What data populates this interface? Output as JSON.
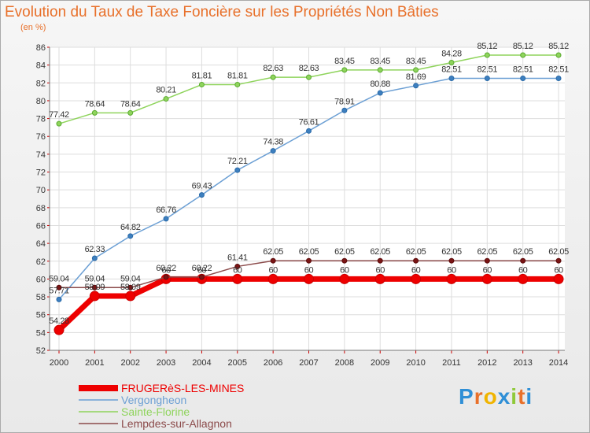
{
  "chart_data": {
    "type": "line",
    "title": "Evolution du Taux de Taxe Foncière sur les Propriétés Non Bâties",
    "subtitle": "(en %)",
    "xlabel": "",
    "ylabel": "(en %)",
    "ylim": [
      52,
      86
    ],
    "yticks": [
      52,
      54,
      56,
      58,
      60,
      62,
      64,
      66,
      68,
      70,
      72,
      74,
      76,
      78,
      80,
      82,
      84,
      86
    ],
    "categories": [
      "2000",
      "2001",
      "2002",
      "2003",
      "2004",
      "2005",
      "2006",
      "2007",
      "2008",
      "2009",
      "2010",
      "2011",
      "2012",
      "2013",
      "2014"
    ],
    "legend_position": "bottom-left",
    "series": [
      {
        "name": "FRUGERèS-LES-MINES",
        "color": "#ee0000",
        "values": [
          54.28,
          58.09,
          58.09,
          60,
          60,
          60,
          60,
          60,
          60,
          60,
          60,
          60,
          60,
          60,
          60
        ],
        "labels": [
          "54.28",
          "58.09",
          "58.09",
          "60",
          "60",
          "60",
          "60",
          "60",
          "60",
          "60",
          "60",
          "60",
          "60",
          "60",
          "60"
        ]
      },
      {
        "name": "Vergongheon",
        "color": "#6b9fd4",
        "values": [
          57.71,
          62.33,
          64.82,
          66.76,
          69.43,
          72.21,
          74.38,
          76.61,
          78.91,
          80.88,
          81.69,
          82.51,
          82.51,
          82.51,
          82.51
        ],
        "labels": [
          "57.71",
          "62.33",
          "64.82",
          "66.76",
          "69.43",
          "72.21",
          "74.38",
          "76.61",
          "78.91",
          "80.88",
          "81.69",
          "82.51",
          "82.51",
          "82.51",
          "82.51"
        ]
      },
      {
        "name": "Sainte-Florine",
        "color": "#8fd45c",
        "values": [
          77.42,
          78.64,
          78.64,
          80.21,
          81.81,
          81.81,
          82.63,
          82.63,
          83.45,
          83.45,
          83.45,
          84.28,
          85.12,
          85.12,
          85.12
        ],
        "labels": [
          "77.42",
          "78.64",
          "78.64",
          "80.21",
          "81.81",
          "81.81",
          "82.63",
          "82.63",
          "83.45",
          "83.45",
          "83.45",
          "84.28",
          "85.12",
          "85.12",
          "85.12"
        ]
      },
      {
        "name": "Lempdes-sur-Allagnon",
        "color": "#8b4a4a",
        "values": [
          59.04,
          59.04,
          59.04,
          60.22,
          60.22,
          61.41,
          62.05,
          62.05,
          62.05,
          62.05,
          62.05,
          62.05,
          62.05,
          62.05,
          62.05
        ],
        "labels": [
          "59.04",
          "59.04",
          "59.04",
          "60.22",
          "60.22",
          "61.41",
          "62.05",
          "62.05",
          "62.05",
          "62.05",
          "62.05",
          "62.05",
          "62.05",
          "62.05",
          "62.05"
        ]
      }
    ]
  },
  "logo": {
    "letters": [
      "P",
      "r",
      "o",
      "x",
      "i",
      "t",
      "i"
    ],
    "colors": [
      "#2f8fd6",
      "#e8702a",
      "#f0b400",
      "#2f8fd6",
      "#8fc93a",
      "#e8702a",
      "#2f8fd6"
    ]
  }
}
